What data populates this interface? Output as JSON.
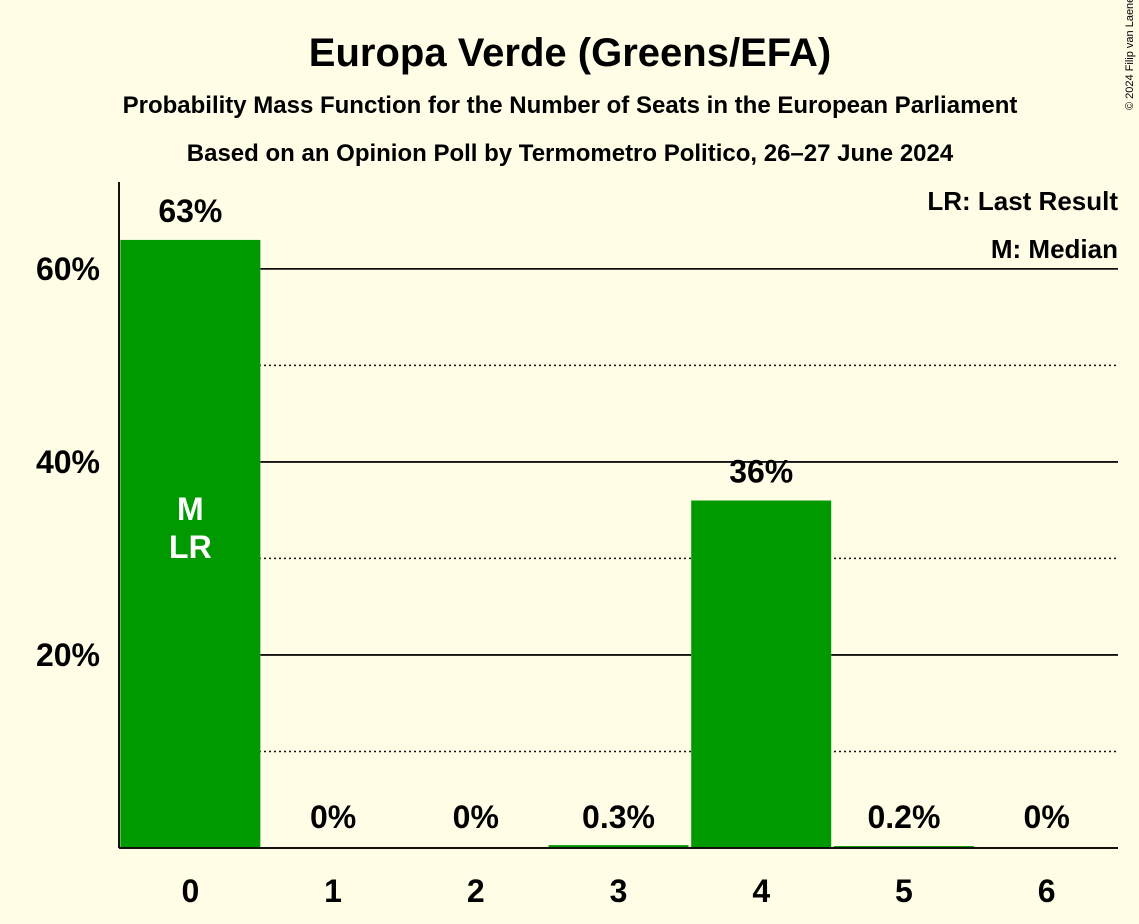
{
  "chart_data": {
    "type": "bar",
    "title": "Europa Verde (Greens/EFA)",
    "subtitle": "Probability Mass Function for the Number of Seats in the European Parliament",
    "subtitle2": "Based on an Opinion Poll by Termometro Politico, 26–27 June 2024",
    "copyright": "© 2024 Filip van Laenen",
    "categories": [
      "0",
      "1",
      "2",
      "3",
      "4",
      "5",
      "6"
    ],
    "values": [
      63,
      0,
      0,
      0.3,
      36,
      0.2,
      0
    ],
    "data_labels": [
      "63%",
      "0%",
      "0%",
      "0.3%",
      "36%",
      "0.2%",
      "0%"
    ],
    "ylim": [
      0,
      69
    ],
    "yticks": [
      {
        "value": 20,
        "label": "20%"
      },
      {
        "value": 40,
        "label": "40%"
      },
      {
        "value": 60,
        "label": "60%"
      }
    ],
    "minor_gridlines": [
      10,
      30,
      50
    ],
    "bar_color": "#009900",
    "markers": [
      {
        "category": "0",
        "labels": [
          "M",
          "LR"
        ]
      }
    ],
    "legend": {
      "position": "top-right",
      "items": [
        "LR: Last Result",
        "M: Median"
      ]
    }
  }
}
